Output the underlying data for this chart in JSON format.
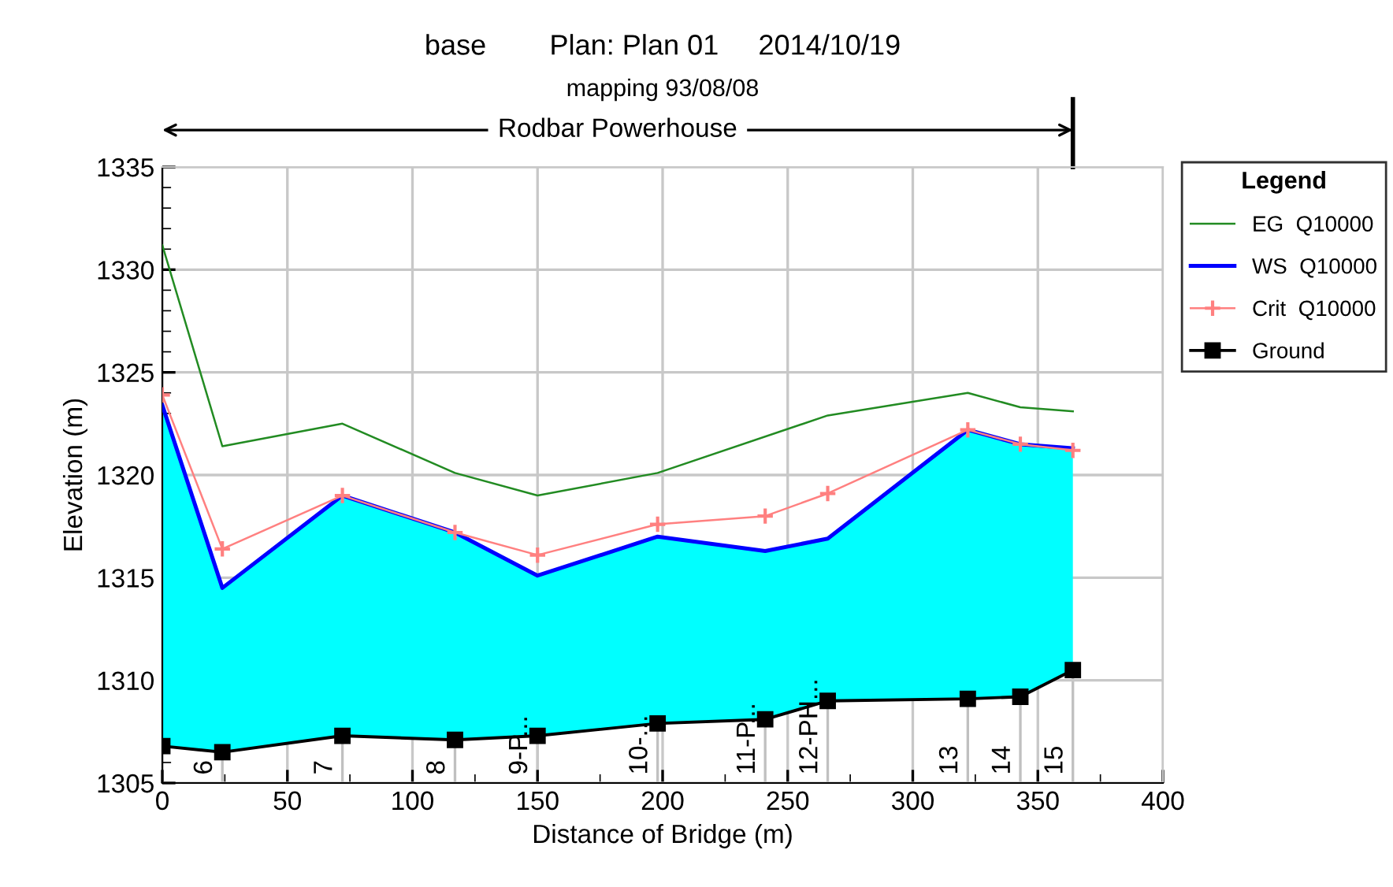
{
  "chart_data": {
    "type": "line",
    "title": "base        Plan: Plan 01     2014/10/19",
    "subtitle": "mapping 93/08/08",
    "xlabel": "Distance of Bridge (m)",
    "ylabel": "Elevation (m)",
    "legend_title": "Legend",
    "x": [
      0,
      24,
      72,
      117,
      150,
      198,
      241,
      266,
      322,
      343,
      364
    ],
    "series": [
      {
        "name": "EG  Q10000",
        "color": "#228b22",
        "marker": "none",
        "values": [
          1331.2,
          1321.4,
          1322.5,
          1320.1,
          1319.0,
          1320.1,
          null,
          1322.9,
          1324.0,
          1323.3,
          1323.1
        ]
      },
      {
        "name": "WS  Q10000",
        "color": "#0000ff",
        "type": "area",
        "marker": "none",
        "values": [
          1323.4,
          1314.5,
          1319.0,
          1317.2,
          1315.1,
          1317.0,
          1316.3,
          1316.9,
          1322.2,
          1321.5,
          1321.3
        ]
      },
      {
        "name": "Crit  Q10000",
        "color": "#ff8080",
        "marker": "cross",
        "values": [
          1323.9,
          1316.4,
          1319.0,
          1317.2,
          1316.1,
          1317.6,
          1318.0,
          1319.1,
          1322.2,
          1321.5,
          1321.2
        ]
      },
      {
        "name": "Ground",
        "color": "#000000",
        "marker": "square",
        "values": [
          1306.8,
          1306.5,
          1307.3,
          1307.1,
          1307.3,
          1307.9,
          1308.1,
          1309.0,
          1309.1,
          1309.2,
          1310.5
        ]
      }
    ],
    "annotations": [
      {
        "text": "6",
        "x": 24,
        "y": 1306.5
      },
      {
        "text": "7",
        "x": 72,
        "y": 1307.3
      },
      {
        "text": "8",
        "x": 117,
        "y": 1307.1
      },
      {
        "text": "9-P...",
        "x": 150,
        "y": 1307.3
      },
      {
        "text": "10-...",
        "x": 198,
        "y": 1307.9
      },
      {
        "text": "11-P...",
        "x": 241,
        "y": 1308.1
      },
      {
        "text": "12-PH...",
        "x": 266,
        "y": 1309.0
      },
      {
        "text": "13",
        "x": 322,
        "y": 1309.1
      },
      {
        "text": "14",
        "x": 343,
        "y": 1309.2
      },
      {
        "text": "15",
        "x": 364,
        "y": 1310.5
      },
      "Rodbar Powerhouse"
    ],
    "xlim": [
      0,
      400
    ],
    "xticks": [
      0,
      50,
      100,
      150,
      200,
      250,
      300,
      350,
      400
    ],
    "ylim": [
      1305,
      1335
    ],
    "yticks": [
      1305,
      1310,
      1315,
      1320,
      1325,
      1330,
      1335
    ],
    "grid": true,
    "legend": "right"
  }
}
